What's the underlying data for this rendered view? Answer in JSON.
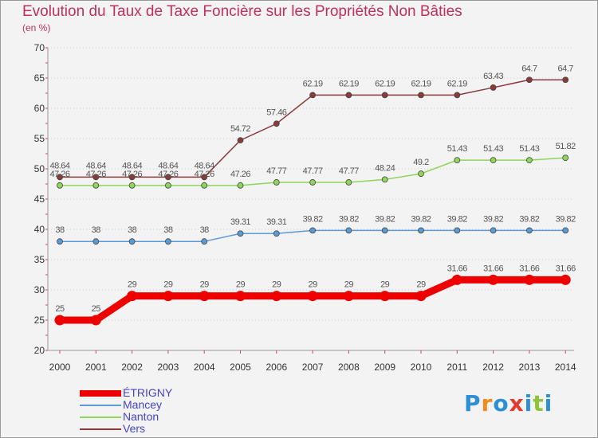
{
  "title": "Evolution du Taux de Taxe Foncière sur les Propriétés Non Bâties",
  "unit_label": "(en %)",
  "brand": {
    "name": "Proxiti",
    "letters": [
      "P",
      "r",
      "o",
      "x",
      "i",
      "t",
      "i"
    ],
    "letter_colors": [
      "#2e8fd4",
      "#f08a1c",
      "#2e8fd4",
      "#e23a2c",
      "#2e8fd4",
      "#8fc33a",
      "#2e8fd4"
    ]
  },
  "chart_data": {
    "type": "line",
    "title": "Evolution du Taux de Taxe Foncière sur les Propriétés Non Bâties",
    "ylabel": "(en %)",
    "xlabel": "",
    "x": [
      "2000",
      "2001",
      "2002",
      "2003",
      "2004",
      "2005",
      "2006",
      "2007",
      "2008",
      "2009",
      "2010",
      "2011",
      "2012",
      "2013",
      "2014"
    ],
    "ylim": [
      20,
      70
    ],
    "yticks": [
      "20",
      "25",
      "30",
      "35",
      "40",
      "45",
      "50",
      "55",
      "60",
      "65",
      "70"
    ],
    "grid": "horizontal dotted",
    "legend": "bottom-left",
    "series": [
      {
        "name": "ÉTRIGNY",
        "color": "#ee0000",
        "labelColor": "#4444cc",
        "values": [
          25,
          25,
          29,
          29,
          29,
          29,
          29,
          29,
          29,
          29,
          29,
          31.66,
          31.66,
          31.66,
          31.66
        ],
        "labels": [
          "25",
          "25",
          "29",
          "29",
          "29",
          "29",
          "29",
          "29",
          "29",
          "29",
          "29",
          "31.66",
          "31.66",
          "31.66",
          "31.66"
        ]
      },
      {
        "name": "Mancey",
        "color": "#5b9bd5",
        "labelColor": "#4444cc",
        "values": [
          38,
          38,
          38,
          38,
          38,
          39.31,
          39.31,
          39.82,
          39.82,
          39.82,
          39.82,
          39.82,
          39.82,
          39.82,
          39.82
        ],
        "labels": [
          "38",
          "38",
          "38",
          "38",
          "38",
          "39.31",
          "39.31",
          "39.82",
          "39.82",
          "39.82",
          "39.82",
          "39.82",
          "39.82",
          "39.82",
          "39.82"
        ]
      },
      {
        "name": "Nanton",
        "color": "#8fd45b",
        "labelColor": "#4444cc",
        "values": [
          47.26,
          47.26,
          47.26,
          47.26,
          47.26,
          47.26,
          47.77,
          47.77,
          47.77,
          48.24,
          49.2,
          51.43,
          51.43,
          51.43,
          51.82
        ],
        "labels": [
          "47.26",
          "47.26",
          "47.26",
          "47.26",
          "47.26",
          "47.26",
          "47.77",
          "47.77",
          "47.77",
          "48.24",
          "49.2",
          "51.43",
          "51.43",
          "51.43",
          "51.82"
        ]
      },
      {
        "name": "Vers",
        "color": "#8b3a3a",
        "labelColor": "#4444cc",
        "values": [
          48.64,
          48.64,
          48.64,
          48.64,
          48.64,
          54.72,
          57.46,
          62.19,
          62.19,
          62.19,
          62.19,
          62.19,
          63.43,
          64.7,
          64.7
        ],
        "labels": [
          "48.64",
          "48.64",
          "48.64",
          "48.64",
          "48.64",
          "54.72",
          "57.46",
          "62.19",
          "62.19",
          "62.19",
          "62.19",
          "62.19",
          "63.43",
          "64.7",
          "64.7"
        ]
      }
    ]
  }
}
